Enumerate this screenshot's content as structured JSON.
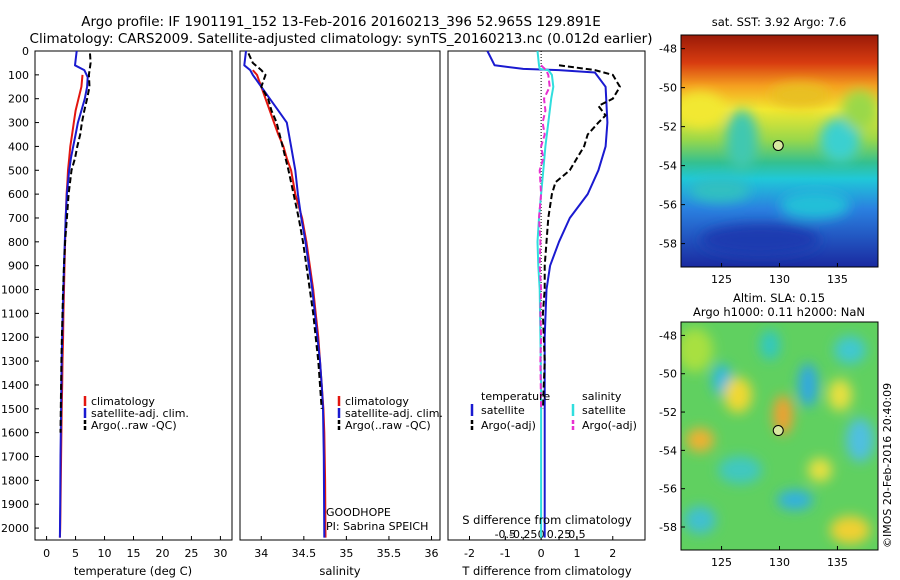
{
  "header": {
    "line1": "Argo profile: IF 1901191_152 13-Feb-2016 20160213_396 52.965S 129.891E",
    "line2": "Climatology: CARS2009. Satellite-adjusted climatology: synTS_20160213.nc (0.012d earlier)"
  },
  "credit": "©IMOS 20-Feb-2016 20:40:09",
  "colors": {
    "climatology": "#e3160f",
    "satellite": "#1a1ad0",
    "argo": "#000000",
    "s_satellite": "#30dede",
    "s_argo": "#e830d0"
  },
  "chart_data": [
    {
      "type": "line",
      "id": "temperature",
      "xlabel": "temperature (deg C)",
      "xlim": [
        -2,
        32
      ],
      "xticks": [
        0,
        5,
        10,
        15,
        20,
        25,
        30
      ],
      "ylim": [
        2050,
        0
      ],
      "yticks": [
        0,
        100,
        200,
        300,
        400,
        500,
        600,
        700,
        800,
        900,
        1000,
        1100,
        1200,
        1300,
        1400,
        1500,
        1600,
        1700,
        1800,
        1900,
        2000
      ],
      "legend": [
        "climatology",
        "satellite-adj. clim.",
        "Argo(..raw -QC)"
      ],
      "series": [
        {
          "name": "climatology",
          "x": [
            6.2,
            6.0,
            5.5,
            5.0,
            4.7,
            4.4,
            4.1,
            3.9,
            3.7,
            3.6,
            3.45,
            3.3,
            3.2,
            3.1,
            3.0,
            2.9,
            2.85,
            2.75,
            2.7,
            2.6,
            2.55,
            2.5,
            2.45,
            2.4,
            2.35,
            2.3
          ],
          "y": [
            100,
            150,
            200,
            250,
            300,
            350,
            400,
            450,
            500,
            550,
            600,
            700,
            800,
            900,
            1000,
            1100,
            1200,
            1300,
            1400,
            1500,
            1600,
            1700,
            1800,
            1900,
            2000,
            2040
          ]
        },
        {
          "name": "satellite-adj. clim.",
          "x": [
            5.2,
            4.9,
            6.5,
            7.1,
            7.0,
            6.6,
            6.0,
            5.4,
            5.0,
            4.6,
            4.2,
            3.9,
            3.7,
            3.5,
            3.3,
            3.15,
            3.0,
            2.9,
            2.8,
            2.7,
            2.6,
            2.55,
            2.5,
            2.45,
            2.4,
            2.35,
            2.3
          ],
          "y": [
            0,
            60,
            80,
            110,
            150,
            200,
            250,
            300,
            350,
            400,
            450,
            500,
            550,
            600,
            700,
            800,
            900,
            1000,
            1100,
            1200,
            1300,
            1400,
            1500,
            1600,
            1700,
            1900,
            2040
          ]
        },
        {
          "name": "Argo(..raw -QC)",
          "x": [
            7.5,
            7.6,
            7.3,
            7.4,
            7.0,
            6.5,
            6.1,
            5.8,
            5.3,
            4.9,
            4.3,
            3.8,
            3.5,
            3.2,
            3.0,
            2.85,
            2.75,
            2.65,
            2.55,
            2.5,
            2.45,
            2.4
          ],
          "y": [
            10,
            50,
            100,
            150,
            200,
            250,
            300,
            350,
            400,
            450,
            500,
            600,
            700,
            800,
            900,
            1000,
            1100,
            1200,
            1300,
            1400,
            1500,
            1600
          ]
        }
      ]
    },
    {
      "type": "line",
      "id": "salinity",
      "xlabel": "salinity",
      "xlim": [
        33.75,
        36.1
      ],
      "xticks": [
        34,
        34.5,
        35,
        35.5,
        36
      ],
      "ylim": [
        2050,
        0
      ],
      "legend": [
        "climatology",
        "satellite-adj. clim.",
        "Argo(..raw -QC)"
      ],
      "annotation": [
        "GOODHOPE",
        "PI: Sabrina SPEICH"
      ],
      "series": [
        {
          "name": "climatology",
          "x": [
            33.9,
            33.95,
            34.0,
            34.05,
            34.1,
            34.15,
            34.2,
            34.26,
            34.3,
            34.35,
            34.4,
            34.48,
            34.53,
            34.57,
            34.61,
            34.64,
            34.67,
            34.69,
            34.71,
            34.73,
            34.74,
            34.75,
            34.755
          ],
          "y": [
            80,
            100,
            150,
            200,
            250,
            300,
            350,
            400,
            450,
            500,
            600,
            700,
            800,
            900,
            1000,
            1100,
            1200,
            1300,
            1400,
            1500,
            1600,
            1800,
            2040
          ]
        },
        {
          "name": "satellite-adj. clim.",
          "x": [
            33.82,
            33.8,
            33.87,
            33.9,
            34.0,
            34.1,
            34.2,
            34.3,
            34.35,
            34.4,
            34.43,
            34.47,
            34.52,
            34.56,
            34.6,
            34.63,
            34.66,
            34.69,
            34.71,
            34.725,
            34.735,
            34.74
          ],
          "y": [
            0,
            60,
            80,
            100,
            150,
            200,
            250,
            300,
            400,
            500,
            600,
            700,
            800,
            900,
            1000,
            1100,
            1200,
            1300,
            1400,
            1500,
            1700,
            2040
          ]
        },
        {
          "name": "Argo(..raw -QC)",
          "x": [
            33.85,
            33.9,
            34.0,
            34.05,
            34.0,
            34.08,
            34.12,
            34.18,
            34.25,
            34.32,
            34.38,
            34.44,
            34.49,
            34.53,
            34.57,
            34.61,
            34.64,
            34.67,
            34.69,
            34.71
          ],
          "y": [
            10,
            50,
            80,
            100,
            150,
            200,
            250,
            300,
            400,
            500,
            600,
            700,
            800,
            900,
            1000,
            1100,
            1200,
            1300,
            1400,
            1500
          ]
        }
      ]
    },
    {
      "type": "line",
      "id": "difference",
      "xlabel": "T difference from climatology",
      "xlabel_top": "S difference from climatology",
      "xlim": [
        -2.6,
        2.9
      ],
      "xticks": [
        -2,
        -1,
        0,
        1,
        2
      ],
      "xticks_s": [
        -0.5,
        -0.25,
        0,
        0.25,
        0.5
      ],
      "ylim": [
        2050,
        0
      ],
      "legend_groups": [
        {
          "title": "temperature",
          "items": [
            "satellite",
            "Argo(-adj)"
          ]
        },
        {
          "title": "salinity",
          "items": [
            "satellite",
            "Argo(-adj)"
          ]
        }
      ],
      "series": [
        {
          "name": "temperature satellite",
          "x": [
            -1.5,
            -1.3,
            -0.5,
            0.5,
            1.5,
            1.8,
            1.85,
            1.8,
            1.6,
            1.3,
            0.8,
            0.5,
            0.25,
            0.15,
            0.1,
            0.1,
            0.1,
            0.1,
            0.1,
            0.1
          ],
          "y": [
            0,
            60,
            75,
            80,
            90,
            150,
            300,
            400,
            500,
            600,
            700,
            800,
            900,
            1000,
            1200,
            1400,
            1600,
            1800,
            1900,
            2040
          ]
        },
        {
          "name": "temperature Argo(-adj)",
          "x": [
            0.5,
            1.5,
            2.0,
            2.2,
            2.0,
            1.6,
            1.8,
            1.6,
            1.3,
            1.2,
            1.0,
            0.8,
            0.4,
            0.3,
            0.2,
            0.15,
            0.1,
            0.1,
            0.05,
            0.1,
            0.05
          ],
          "y": [
            60,
            80,
            100,
            150,
            200,
            230,
            270,
            300,
            350,
            400,
            450,
            500,
            550,
            600,
            700,
            800,
            900,
            1000,
            1100,
            1300,
            1500
          ]
        },
        {
          "name": "salinity satellite",
          "x": [
            -0.05,
            -0.03,
            -0.02,
            0.1,
            0.15,
            0.17,
            0.14,
            0.1,
            0.06,
            0.03,
            0.0,
            -0.03,
            -0.05,
            -0.04,
            -0.02,
            -0.01,
            0.0,
            0.0,
            0.0,
            0.0,
            0.0
          ],
          "y": [
            0,
            60,
            75,
            80,
            100,
            150,
            200,
            300,
            400,
            500,
            600,
            700,
            800,
            900,
            1000,
            1200,
            1400,
            1600,
            1800,
            1900,
            2040
          ]
        },
        {
          "name": "salinity Argo(-adj)",
          "x": [
            0.0,
            0.07,
            0.1,
            0.12,
            0.04,
            0.06,
            0.02,
            0.05,
            0.0,
            0.03,
            -0.02,
            0.0,
            -0.03,
            -0.01,
            -0.02,
            0.0,
            -0.01,
            0.0,
            -0.01,
            0.0
          ],
          "y": [
            60,
            80,
            100,
            150,
            200,
            250,
            300,
            350,
            400,
            450,
            500,
            600,
            700,
            800,
            900,
            1000,
            1100,
            1200,
            1300,
            1500
          ]
        }
      ]
    },
    {
      "type": "heatmap",
      "id": "sst-map",
      "title": "sat. SST: 3.92 Argo: 7.6",
      "xlim": [
        121.5,
        138.5
      ],
      "ylim": [
        -59.2,
        -47.3
      ],
      "xticks": [
        125,
        130,
        135
      ],
      "yticks": [
        -48,
        -50,
        -52,
        -54,
        -56,
        -58
      ],
      "marker": {
        "lon": 129.891,
        "lat": -52.965
      }
    },
    {
      "type": "heatmap",
      "id": "sla-map",
      "title": "Altim. SLA: 0.15",
      "subtitle": "Argo h1000: 0.11 h2000: NaN",
      "xlim": [
        121.5,
        138.5
      ],
      "ylim": [
        -59.2,
        -47.3
      ],
      "xticks": [
        125,
        130,
        135
      ],
      "yticks": [
        -48,
        -50,
        -52,
        -54,
        -56,
        -58
      ],
      "marker": {
        "lon": 129.891,
        "lat": -52.965
      }
    }
  ]
}
